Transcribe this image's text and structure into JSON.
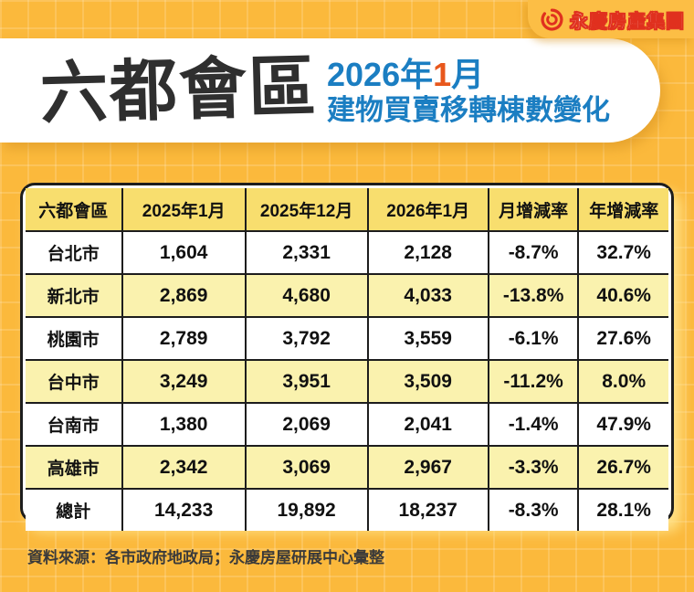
{
  "brand": {
    "logo_text": "永慶房產集團"
  },
  "header": {
    "title": "六都會區",
    "subtitle_line1_prefix": "2026年",
    "subtitle_highlight": "1",
    "subtitle_line1_suffix": "月",
    "subtitle_line2": "建物買賣移轉棟數變化"
  },
  "chart_data": {
    "type": "table",
    "title": "六都會區 2026年1月 建物買賣移轉棟數變化",
    "columns": [
      "六都會區",
      "2025年1月",
      "2025年12月",
      "2026年1月",
      "月增減率",
      "年增減率"
    ],
    "rows": [
      [
        "台北市",
        "1,604",
        "2,331",
        "2,128",
        "-8.7%",
        "32.7%"
      ],
      [
        "新北市",
        "2,869",
        "4,680",
        "4,033",
        "-13.8%",
        "40.6%"
      ],
      [
        "桃園市",
        "2,789",
        "3,792",
        "3,559",
        "-6.1%",
        "27.6%"
      ],
      [
        "台中市",
        "3,249",
        "3,951",
        "3,509",
        "-11.2%",
        "8.0%"
      ],
      [
        "台南市",
        "1,380",
        "2,069",
        "2,041",
        "-1.4%",
        "47.9%"
      ],
      [
        "高雄市",
        "2,342",
        "3,069",
        "2,967",
        "-3.3%",
        "26.7%"
      ],
      [
        "總計",
        "14,233",
        "19,892",
        "18,237",
        "-8.3%",
        "28.1%"
      ]
    ],
    "values_numeric": {
      "2025年1月": [
        1604,
        2869,
        2789,
        3249,
        1380,
        2342,
        14233
      ],
      "2025年12月": [
        2331,
        4680,
        3792,
        3951,
        2069,
        3069,
        19892
      ],
      "2026年1月": [
        2128,
        4033,
        3559,
        3509,
        2041,
        2967,
        18237
      ],
      "月增減率_pct": [
        -8.7,
        -13.8,
        -6.1,
        -11.2,
        -1.4,
        -3.3,
        -8.3
      ],
      "年增減率_pct": [
        32.7,
        40.6,
        27.6,
        8.0,
        47.9,
        26.7,
        28.1
      ]
    }
  },
  "footer": {
    "source": "資料來源：各市政府地政局；永慶房屋研展中心彙整"
  },
  "colors": {
    "background": "#FBB93C",
    "header_cell_yellow": "#F8DE6E",
    "alt_row_yellow": "#FAF2AE",
    "title_black": "#2f2f2f",
    "subtitle_blue": "#1B7EC2",
    "highlight_orange": "#E8571C",
    "brand_red": "#E0301E"
  }
}
